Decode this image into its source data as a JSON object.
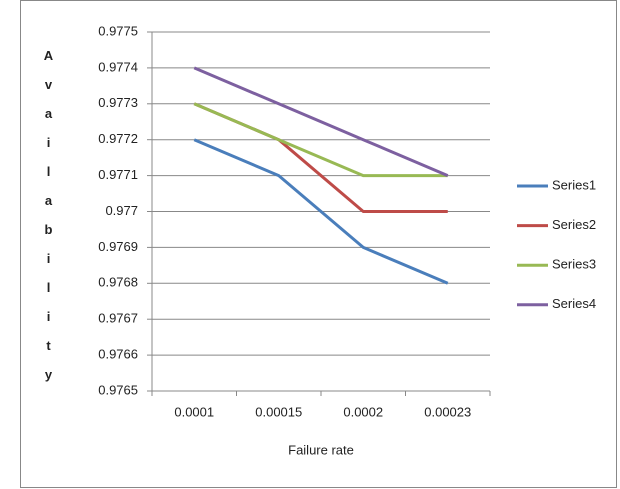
{
  "chart_data": {
    "type": "line",
    "x_label": "Failure rate",
    "y_label": "Availability",
    "categories": [
      "0.0001",
      "0.00015",
      "0.0002",
      "0.00023"
    ],
    "series": [
      {
        "name": "Series1",
        "color": "#4a7ebb",
        "values": [
          0.9772,
          0.9771,
          0.9769,
          0.9768
        ]
      },
      {
        "name": "Series2",
        "color": "#be4b48",
        "values": [
          0.9773,
          0.9772,
          0.977,
          0.977
        ]
      },
      {
        "name": "Series3",
        "color": "#98b954",
        "values": [
          0.9773,
          0.9772,
          0.9771,
          0.9771
        ]
      },
      {
        "name": "Series4",
        "color": "#7d60a0",
        "values": [
          0.9774,
          0.9773,
          0.9772,
          0.9771
        ]
      }
    ],
    "ylim": [
      0.9765,
      0.9775
    ],
    "yticks": [
      0.9765,
      0.9766,
      0.9767,
      0.9768,
      0.9769,
      0.977,
      0.9771,
      0.9772,
      0.9773,
      0.9774,
      0.9775
    ],
    "grid": true,
    "legend": "right"
  }
}
